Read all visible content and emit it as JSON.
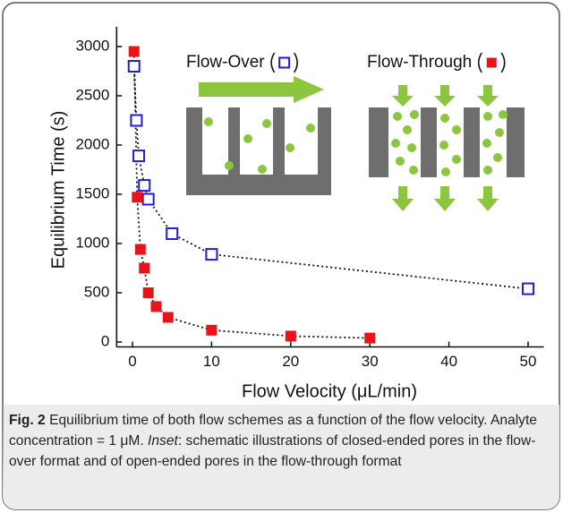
{
  "chart_data": {
    "type": "scatter",
    "xlabel": "Flow Velocity (μL/min)",
    "ylabel": "Equilibrium Time (s)",
    "xlim": [
      -2,
      52
    ],
    "ylim": [
      -50,
      3200
    ],
    "xticks": [
      0,
      10,
      20,
      30,
      40,
      50
    ],
    "yticks": [
      0,
      500,
      1000,
      1500,
      2000,
      2500,
      3000
    ],
    "series": [
      {
        "name": "Flow-Over",
        "color": "#1f1fd6",
        "marker": "open-square",
        "x": [
          0.2,
          0.5,
          0.8,
          1.5,
          2,
          5,
          10,
          50
        ],
        "values": [
          2800,
          2250,
          1890,
          1590,
          1450,
          1100,
          890,
          540
        ]
      },
      {
        "name": "Flow-Through",
        "color": "#e8141a",
        "marker": "filled-square",
        "x": [
          0.2,
          0.6,
          1,
          1.5,
          2,
          3,
          4.5,
          10,
          20,
          30
        ],
        "values": [
          2950,
          1470,
          940,
          750,
          500,
          360,
          250,
          120,
          60,
          40
        ]
      }
    ]
  },
  "caption": {
    "label": "Fig. 2",
    "text_1": " Equilibrium time of both flow schemes as a function of the flow velocity. Analyte concentration = 1 μM. ",
    "inset_label": "Inset",
    "text_2": ": schematic illustrations of closed-ended pores in the flow-over format and of open-ended pores in the flow-through format"
  }
}
